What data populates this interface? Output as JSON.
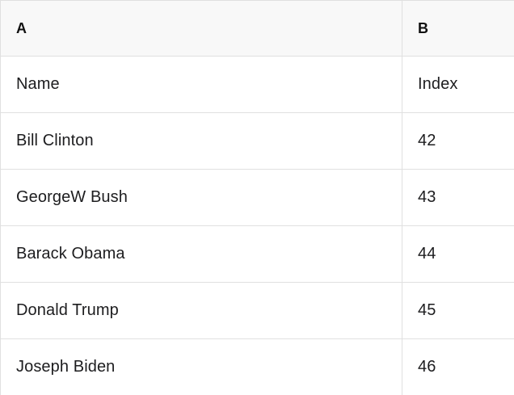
{
  "table": {
    "columns": [
      {
        "label": "A"
      },
      {
        "label": "B"
      }
    ],
    "rows": [
      {
        "a": "Name",
        "b": "Index"
      },
      {
        "a": "Bill Clinton",
        "b": "42"
      },
      {
        "a": "GeorgeW Bush",
        "b": "43"
      },
      {
        "a": "Barack Obama",
        "b": "44"
      },
      {
        "a": "Donald Trump",
        "b": "45"
      },
      {
        "a": "Joseph Biden",
        "b": "46"
      }
    ],
    "colors": {
      "header_bg": "#f8f8f8",
      "row_bg": "#ffffff",
      "border": "#e0e0e0",
      "text": "#1d1d1f"
    }
  }
}
